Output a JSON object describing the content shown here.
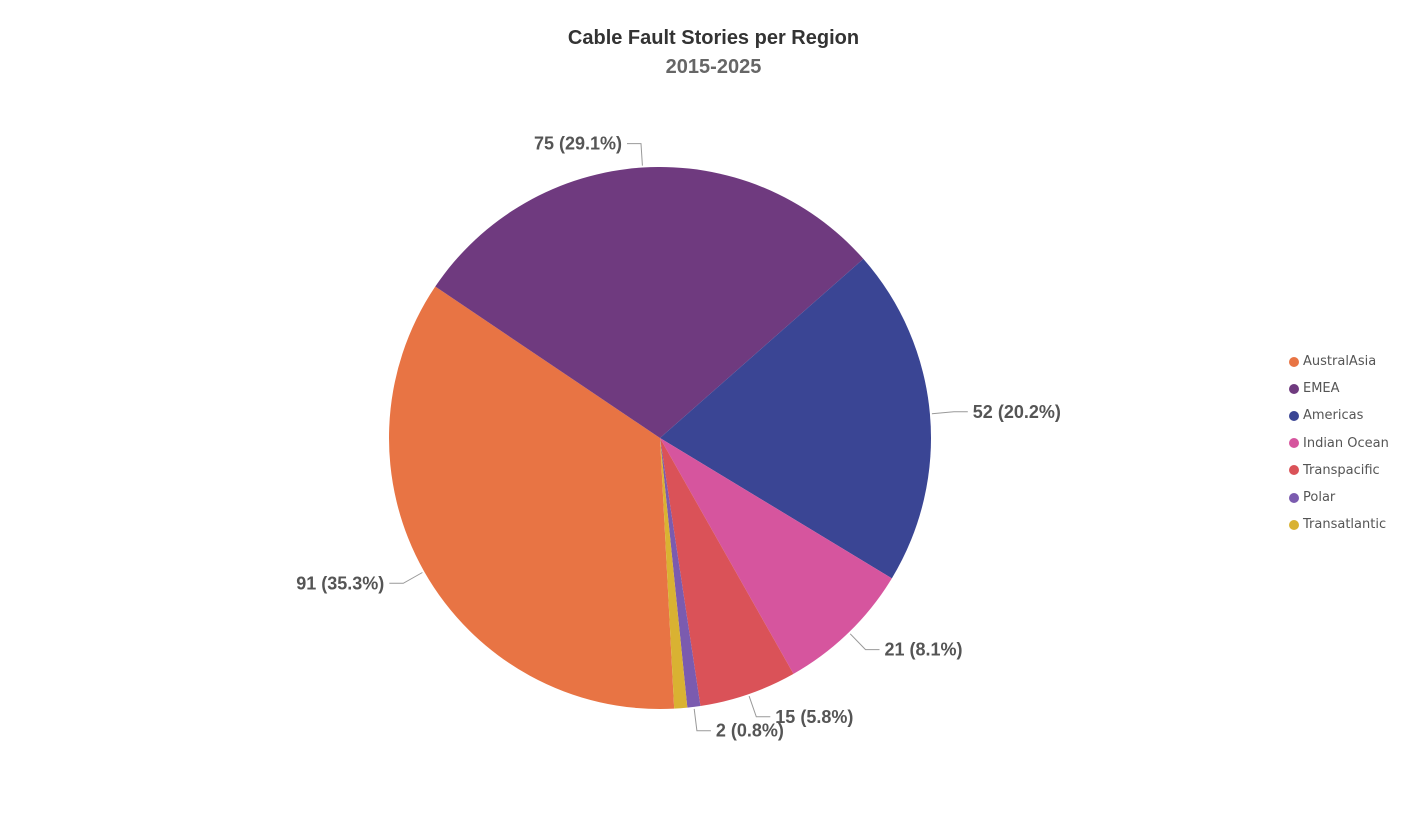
{
  "chart_data": {
    "type": "pie",
    "title": "Cable Fault Stories per Region",
    "subtitle": "2015-2025",
    "slices": [
      {
        "name": "AustralAsia",
        "value": 91,
        "percent": "35.3%",
        "color": "#E87444"
      },
      {
        "name": "EMEA",
        "value": 75,
        "percent": "29.1%",
        "color": "#6F3A7F"
      },
      {
        "name": "Americas",
        "value": 52,
        "percent": "20.2%",
        "color": "#3A4594"
      },
      {
        "name": "Indian Ocean",
        "value": 21,
        "percent": "8.1%",
        "color": "#D6559E"
      },
      {
        "name": "Transpacific",
        "value": 15,
        "percent": "5.8%",
        "color": "#DA5258"
      },
      {
        "name": "Polar",
        "value": 2,
        "percent": "0.8%",
        "color": "#7B5BAF"
      },
      {
        "name": "Transatlantic",
        "value": 2,
        "percent": "0.8%",
        "color": "#D9B232"
      }
    ],
    "data_labels": {
      "AustralAsia": "91 (35.3%)",
      "EMEA": "75 (29.1%)",
      "Americas": "52 (20.2%)",
      "Indian Ocean": "21 (8.1%)",
      "Transpacific": "15 (5.8%)",
      "Polar": "2 (0.8%)"
    },
    "legend": {
      "position": "right",
      "items": [
        "AustralAsia",
        "EMEA",
        "Americas",
        "Indian Ocean",
        "Transpacific",
        "Polar",
        "Transatlantic"
      ]
    }
  }
}
